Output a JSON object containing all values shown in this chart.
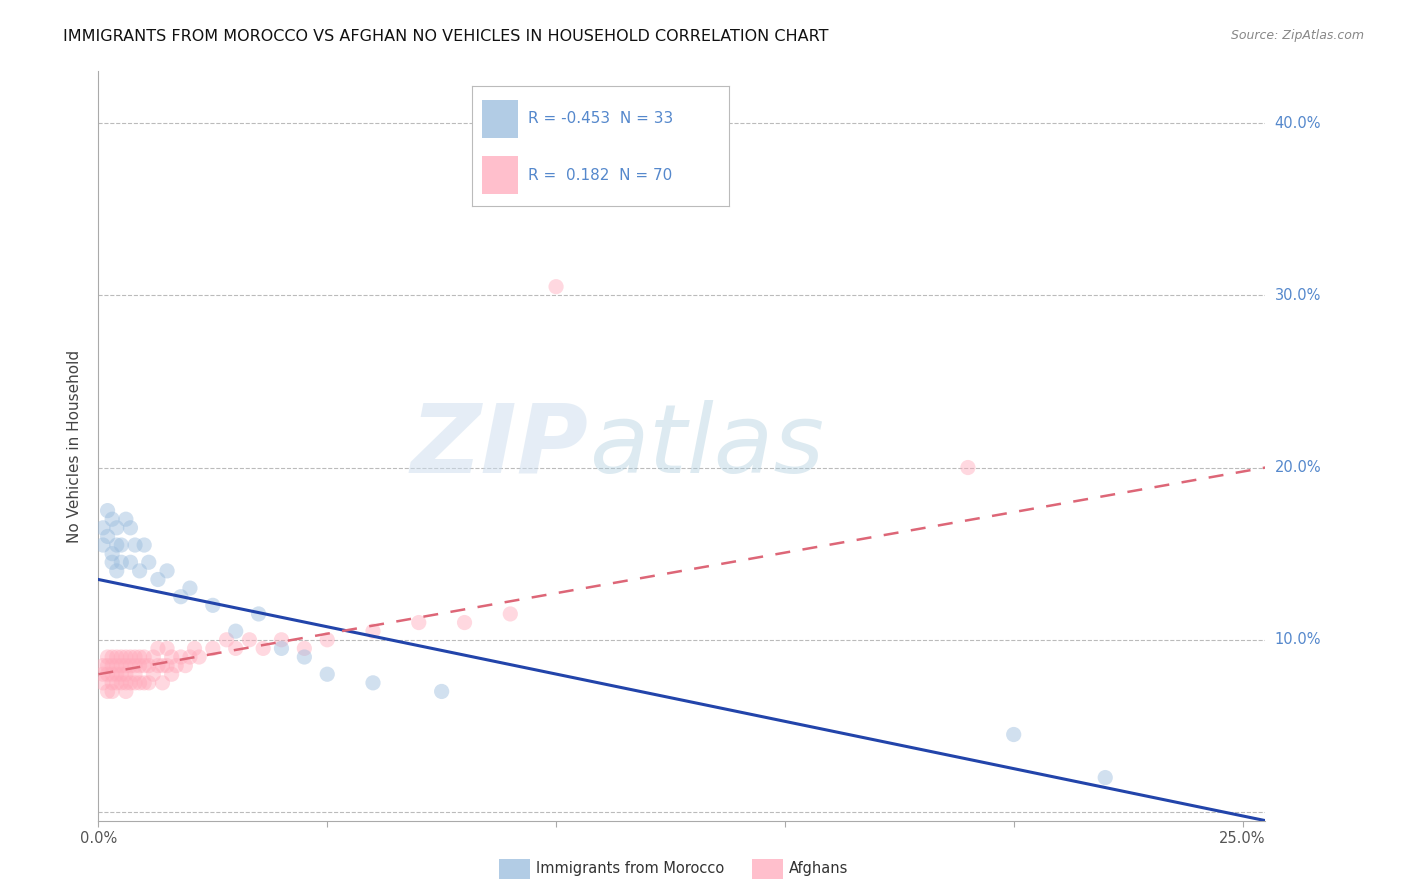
{
  "title": "IMMIGRANTS FROM MOROCCO VS AFGHAN NO VEHICLES IN HOUSEHOLD CORRELATION CHART",
  "source": "Source: ZipAtlas.com",
  "ylabel": "No Vehicles in Household",
  "xlim": [
    0.0,
    0.255
  ],
  "ylim": [
    -0.005,
    0.43
  ],
  "xtick_positions": [
    0.0,
    0.05,
    0.1,
    0.15,
    0.2,
    0.25
  ],
  "xticklabels": [
    "0.0%",
    "",
    "",
    "",
    "",
    "25.0%"
  ],
  "ytick_positions": [
    0.0,
    0.1,
    0.2,
    0.3,
    0.4
  ],
  "yticklabels": [
    "",
    "10.0%",
    "20.0%",
    "30.0%",
    "40.0%"
  ],
  "grid_color": "#bbbbbb",
  "bg_color": "#ffffff",
  "color_morocco": "#99bbdd",
  "color_afghan": "#ffaabb",
  "color_line_morocco": "#2244aa",
  "color_line_afghan": "#dd6677",
  "color_tick_right": "#5588cc",
  "watermark_zip": "ZIP",
  "watermark_atlas": "atlas",
  "legend_label1": "Immigrants from Morocco",
  "legend_label2": "Afghans",
  "R1": "-0.453",
  "N1": "33",
  "R2": "0.182",
  "N2": "70",
  "morocco_x": [
    0.001,
    0.001,
    0.002,
    0.002,
    0.003,
    0.003,
    0.003,
    0.004,
    0.004,
    0.004,
    0.005,
    0.005,
    0.006,
    0.007,
    0.007,
    0.008,
    0.009,
    0.01,
    0.011,
    0.013,
    0.015,
    0.018,
    0.02,
    0.025,
    0.03,
    0.035,
    0.04,
    0.045,
    0.05,
    0.06,
    0.075,
    0.2,
    0.22
  ],
  "morocco_y": [
    0.165,
    0.155,
    0.175,
    0.16,
    0.17,
    0.15,
    0.145,
    0.165,
    0.155,
    0.14,
    0.155,
    0.145,
    0.17,
    0.165,
    0.145,
    0.155,
    0.14,
    0.155,
    0.145,
    0.135,
    0.14,
    0.125,
    0.13,
    0.12,
    0.105,
    0.115,
    0.095,
    0.09,
    0.08,
    0.075,
    0.07,
    0.045,
    0.02
  ],
  "afghan_x": [
    0.001,
    0.001,
    0.001,
    0.002,
    0.002,
    0.002,
    0.002,
    0.003,
    0.003,
    0.003,
    0.003,
    0.003,
    0.004,
    0.004,
    0.004,
    0.004,
    0.005,
    0.005,
    0.005,
    0.005,
    0.006,
    0.006,
    0.006,
    0.006,
    0.006,
    0.007,
    0.007,
    0.007,
    0.008,
    0.008,
    0.008,
    0.008,
    0.009,
    0.009,
    0.009,
    0.01,
    0.01,
    0.01,
    0.011,
    0.011,
    0.012,
    0.012,
    0.013,
    0.013,
    0.014,
    0.014,
    0.015,
    0.015,
    0.016,
    0.016,
    0.017,
    0.018,
    0.019,
    0.02,
    0.021,
    0.022,
    0.025,
    0.028,
    0.03,
    0.033,
    0.036,
    0.04,
    0.045,
    0.05,
    0.06,
    0.07,
    0.08,
    0.09,
    0.1,
    0.19
  ],
  "afghan_y": [
    0.085,
    0.08,
    0.075,
    0.085,
    0.09,
    0.08,
    0.07,
    0.085,
    0.075,
    0.09,
    0.08,
    0.07,
    0.085,
    0.075,
    0.09,
    0.08,
    0.085,
    0.075,
    0.09,
    0.08,
    0.085,
    0.075,
    0.09,
    0.08,
    0.07,
    0.085,
    0.075,
    0.09,
    0.085,
    0.075,
    0.09,
    0.08,
    0.085,
    0.075,
    0.09,
    0.085,
    0.075,
    0.09,
    0.085,
    0.075,
    0.09,
    0.08,
    0.085,
    0.095,
    0.085,
    0.075,
    0.085,
    0.095,
    0.09,
    0.08,
    0.085,
    0.09,
    0.085,
    0.09,
    0.095,
    0.09,
    0.095,
    0.1,
    0.095,
    0.1,
    0.095,
    0.1,
    0.095,
    0.1,
    0.105,
    0.11,
    0.11,
    0.115,
    0.305,
    0.2
  ],
  "title_fontsize": 11.5,
  "tick_fontsize": 10.5,
  "ylabel_fontsize": 11,
  "dot_size": 120,
  "dot_alpha": 0.45
}
